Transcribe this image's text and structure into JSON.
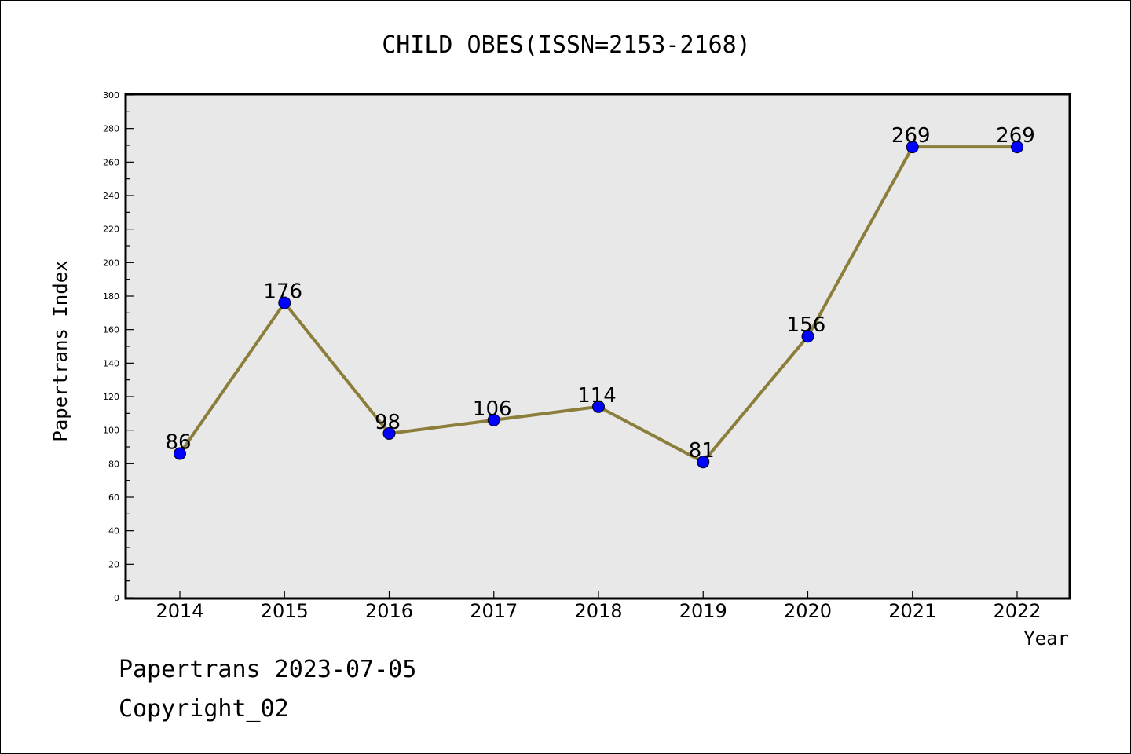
{
  "chart_data": {
    "type": "line",
    "title": "CHILD OBES(ISSN=2153-2168)",
    "xlabel": "Year",
    "ylabel": "Papertrans Index",
    "categories": [
      "2014",
      "2015",
      "2016",
      "2017",
      "2018",
      "2019",
      "2020",
      "2021",
      "2022"
    ],
    "values": [
      86,
      176,
      98,
      106,
      114,
      81,
      156,
      269,
      269
    ],
    "data_labels": [
      "86",
      "176",
      "98",
      "106",
      "114",
      "81",
      "156",
      "269",
      "269"
    ],
    "ylim": [
      0,
      300
    ],
    "yticks": [
      "0",
      "20",
      "40",
      "60",
      "80",
      "100",
      "120",
      "140",
      "160",
      "180",
      "200",
      "220",
      "240",
      "260",
      "280",
      "300"
    ],
    "grid": false,
    "line_color": "#8b7d3a",
    "marker_color": "#0000ff",
    "plot_background": "#e8e8e8"
  },
  "footer": {
    "line1": "Papertrans 2023-07-05",
    "line2": "Copyright_02"
  }
}
